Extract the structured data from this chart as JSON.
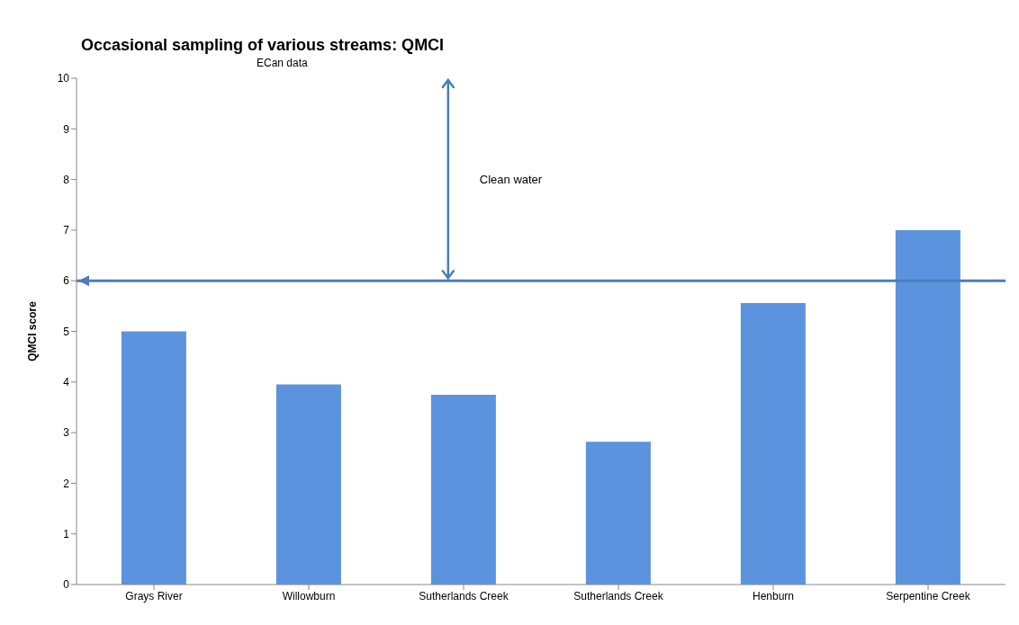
{
  "chart_data": {
    "type": "bar",
    "title": "Occasional sampling of various streams: QMCI",
    "subtitle": "ECan data",
    "ylabel": "QMCI score",
    "categories": [
      "Grays River",
      "Willowburn",
      "Sutherlands Creek",
      "Sutherlands Creek",
      "Henburn",
      "Serpentine Creek"
    ],
    "values": [
      5.0,
      3.95,
      3.75,
      2.82,
      5.56,
      7.0
    ],
    "color": "#5b93de",
    "ylim": [
      0,
      10
    ],
    "yticks": [
      0,
      1,
      2,
      3,
      4,
      5,
      6,
      7,
      8,
      9,
      10
    ],
    "grid": false,
    "legend": false,
    "ref_lines": [
      {
        "axis": "y",
        "value": 6,
        "color": "#4a7ebb"
      }
    ],
    "annotations": [
      "Clean water"
    ]
  }
}
